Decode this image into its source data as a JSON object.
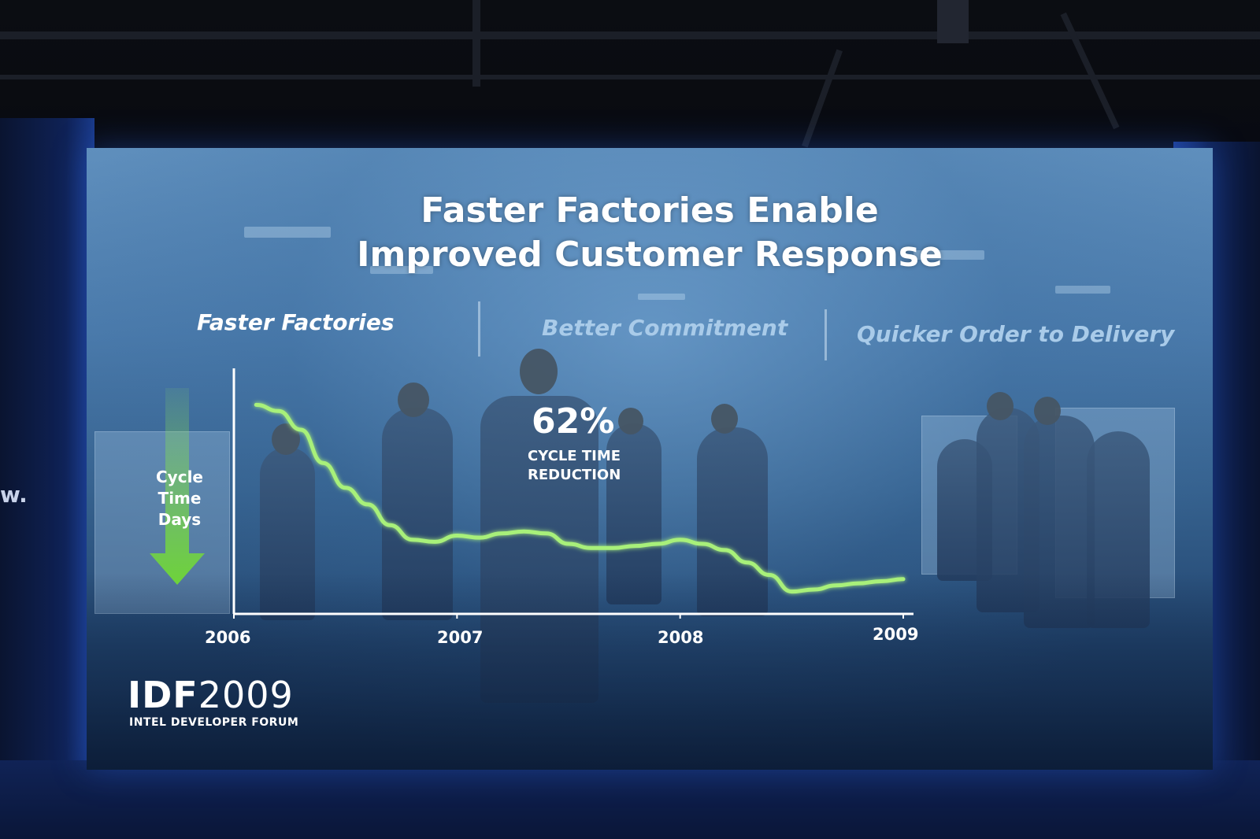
{
  "slide": {
    "title_line1": "Faster Factories Enable",
    "title_line2": "Improved Customer Response",
    "columns": [
      {
        "label": "Faster Factories",
        "active": true
      },
      {
        "label": "Better Commitment",
        "active": false
      },
      {
        "label": "Quicker Order to Delivery",
        "active": false
      }
    ],
    "callout_percent": "62%",
    "callout_line1": "CYCLE TIME",
    "callout_line2": "REDUCTION",
    "y_label_lines": [
      "Cycle",
      "Time",
      "Days"
    ],
    "logo_main_bold": "IDF",
    "logo_main_light": "2009",
    "logo_sub": "INTEL DEVELOPER FORUM",
    "wall_text": "w."
  },
  "chart_data": {
    "type": "line",
    "xlim": [
      2006,
      2009
    ],
    "x_ticks": [
      "2006",
      "2007",
      "2008",
      "2009"
    ],
    "series": [
      {
        "color": "#a8f07a",
        "x": [
          2006.1,
          2006.2,
          2006.3,
          2006.4,
          2006.5,
          2006.6,
          2006.7,
          2006.8,
          2006.9,
          2007.0,
          2007.1,
          2007.2,
          2007.3,
          2007.4,
          2007.5,
          2007.6,
          2007.7,
          2007.8,
          2007.9,
          2008.0,
          2008.1,
          2008.2,
          2008.3,
          2008.4,
          2008.5,
          2008.6,
          2008.7,
          2008.8,
          2008.9,
          2009.0
        ],
        "y": [
          100,
          97,
          88,
          72,
          60,
          52,
          42,
          35,
          34,
          37,
          36,
          38,
          39,
          38,
          33,
          31,
          31,
          32,
          33,
          35,
          33,
          30,
          24,
          18,
          10,
          11,
          13,
          14,
          15,
          16
        ]
      }
    ],
    "ylim": [
      0,
      110
    ],
    "grid": false,
    "legend": "none"
  }
}
